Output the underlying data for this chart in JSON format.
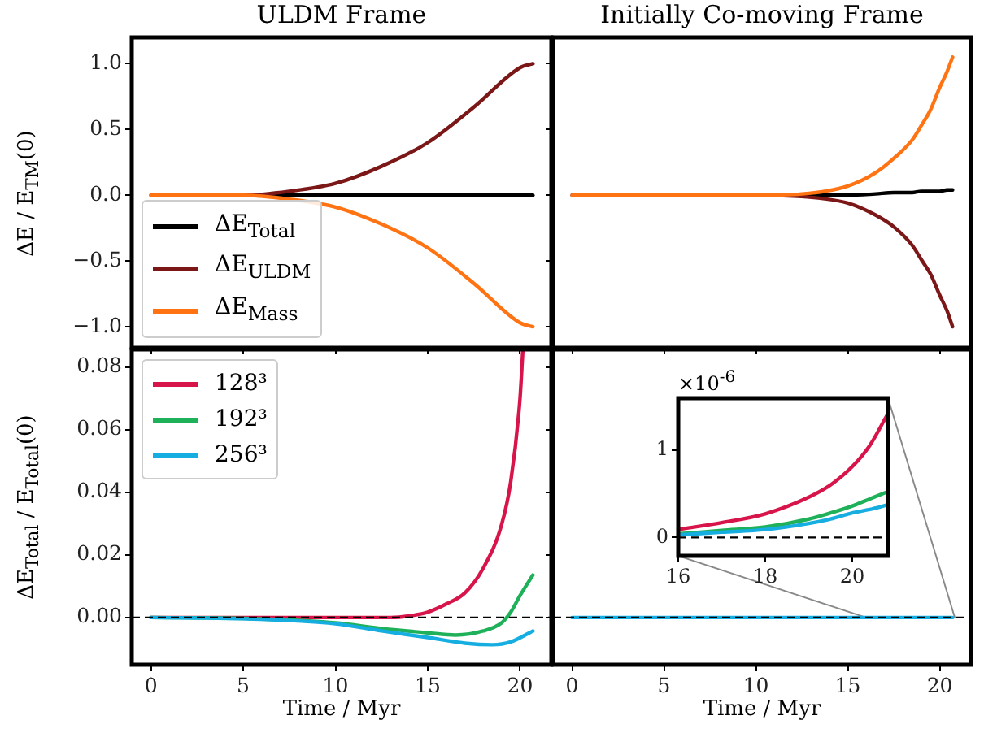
{
  "chart_data": [
    {
      "type": "line",
      "title": "ULDM Frame",
      "ylabel": "ΔE / E$_{TM}$(0)",
      "xlim": [
        -1.04,
        21.7
      ],
      "ylim": [
        -1.16,
        1.2
      ],
      "xticks": [
        0,
        5,
        10,
        15,
        20
      ],
      "yticks": [
        {
          "value": -1,
          "label": "−1.0"
        },
        {
          "value": -0.5,
          "label": "−0.5"
        },
        {
          "value": 0,
          "label": "0.0"
        },
        {
          "value": 0.5,
          "label": "0.5"
        },
        {
          "value": 1,
          "label": "1.0"
        }
      ],
      "tick_labels": "y",
      "grid": false,
      "legend": "bottom left",
      "series": [
        {
          "name": "ΔE$_{Total}$",
          "color": "#000000",
          "x": [
            5,
            7.5,
            10,
            12.5,
            15,
            17.5,
            20,
            20.7
          ],
          "values": [
            0,
            0,
            0,
            0,
            0,
            0,
            0,
            0
          ]
        },
        {
          "name": "ΔE$_{ULDM}$",
          "color": "#7b1717",
          "x": [
            0,
            2.5,
            5,
            7.5,
            10,
            12.5,
            15,
            17.5,
            20,
            20.7
          ],
          "values": [
            0,
            0,
            0,
            0.03,
            0.09,
            0.22,
            0.4,
            0.67,
            0.97,
            1.0
          ]
        },
        {
          "name": "ΔE$_{Mass}$",
          "color": "#ff7312",
          "x": [
            0,
            2.5,
            5,
            7.5,
            10,
            12.5,
            15,
            17.5,
            20,
            20.7
          ],
          "values": [
            0,
            0,
            0,
            -0.03,
            -0.09,
            -0.22,
            -0.4,
            -0.67,
            -0.97,
            -1.0
          ]
        }
      ]
    },
    {
      "type": "line",
      "title": "Initially Co-moving Frame",
      "xlim": [
        -1.04,
        21.7
      ],
      "ylim": [
        -1.16,
        1.2
      ],
      "xticks": [
        0,
        5,
        10,
        15,
        20
      ],
      "yticks": [
        {
          "value": -1,
          "label": null
        },
        {
          "value": -0.5,
          "label": null
        },
        {
          "value": 0,
          "label": null
        },
        {
          "value": 0.5,
          "label": null
        },
        {
          "value": 1,
          "label": null
        }
      ],
      "tick_labels": false,
      "grid": false,
      "series": [
        {
          "color": "#000000",
          "x": [
            10,
            12.5,
            15,
            16.5,
            17.5,
            18.5,
            19,
            19.5,
            20,
            20.4,
            20.7
          ],
          "values": [
            0,
            0,
            0,
            0.01,
            0.02,
            0.02,
            0.03,
            0.03,
            0.03,
            0.04,
            0.04
          ]
        },
        {
          "color": "#7b1717",
          "x": [
            0,
            5,
            10,
            12.5,
            15,
            16.5,
            17.5,
            18.5,
            19,
            19.5,
            20,
            20.4,
            20.7
          ],
          "values": [
            0,
            0,
            0,
            -0.01,
            -0.06,
            -0.15,
            -0.24,
            -0.38,
            -0.49,
            -0.6,
            -0.76,
            -0.88,
            -1.0
          ]
        },
        {
          "color": "#ff7312",
          "x": [
            0,
            5,
            10,
            12.5,
            15,
            16.5,
            17.5,
            18.5,
            19,
            19.5,
            20,
            20.4,
            20.7
          ],
          "values": [
            0,
            0,
            0,
            0.01,
            0.07,
            0.17,
            0.28,
            0.42,
            0.53,
            0.65,
            0.82,
            0.94,
            1.05
          ]
        }
      ]
    },
    {
      "type": "line",
      "xlabel": "Time / Myr",
      "ylabel": "ΔE$_{Total}$ / E$_{Total}$(0)",
      "xlim": [
        -1.04,
        21.7
      ],
      "ylim": [
        -0.0151,
        0.0857
      ],
      "xticks": [
        0,
        5,
        10,
        15,
        20
      ],
      "yticks": [
        {
          "value": 0,
          "label": "0.00"
        },
        {
          "value": 0.02,
          "label": "0.02"
        },
        {
          "value": 0.04,
          "label": "0.04"
        },
        {
          "value": 0.06,
          "label": "0.06"
        },
        {
          "value": 0.08,
          "label": "0.08"
        }
      ],
      "grid": false,
      "legend": "top left",
      "ref_lines": [
        {
          "axis": "y",
          "value": 0,
          "color": "#000000",
          "line_style": "dashed"
        }
      ],
      "series": [
        {
          "name": "128³",
          "color": "#d8154a",
          "x": [
            0,
            5,
            10,
            13,
            14,
            15,
            16,
            17,
            18,
            19,
            19.5,
            20,
            20.15
          ],
          "values": [
            0,
            0,
            0,
            0,
            0.0005,
            0.0017,
            0.0043,
            0.0078,
            0.0157,
            0.0296,
            0.0435,
            0.07,
            0.085
          ]
        },
        {
          "name": "192³",
          "color": "#1fb15a",
          "x": [
            0,
            5,
            10,
            12.5,
            15,
            16.5,
            18,
            19,
            19.5,
            20,
            20.7
          ],
          "values": [
            0,
            -0.0003,
            -0.0017,
            -0.0035,
            -0.0049,
            -0.0056,
            -0.0043,
            -0.0017,
            0.0017,
            0.007,
            0.0136
          ]
        },
        {
          "name": "256³",
          "color": "#16aee0",
          "x": [
            0,
            5,
            10,
            12.5,
            15,
            17,
            18.5,
            19.5,
            20.7
          ],
          "values": [
            0,
            -0.0004,
            -0.002,
            -0.0043,
            -0.0064,
            -0.0082,
            -0.0087,
            -0.0078,
            -0.0043
          ]
        }
      ]
    },
    {
      "type": "line",
      "xlabel": "Time / Myr",
      "xlim": [
        -1.04,
        21.7
      ],
      "ylim": [
        -0.0151,
        0.0857
      ],
      "xticks": [
        0,
        5,
        10,
        15,
        20
      ],
      "yticks": [
        {
          "value": 0,
          "label": null
        },
        {
          "value": 0.02,
          "label": null
        },
        {
          "value": 0.04,
          "label": null
        },
        {
          "value": 0.06,
          "label": null
        },
        {
          "value": 0.08,
          "label": null
        }
      ],
      "tick_labels": "x",
      "grid": false,
      "ref_lines": [
        {
          "axis": "y",
          "value": 0,
          "color": "#000000",
          "line_style": "dashed"
        }
      ],
      "series": [
        {
          "color": "#16aee0",
          "x": [
            0,
            20.7
          ],
          "values": [
            0,
            0
          ]
        }
      ]
    },
    {
      "type": "line",
      "annotations": [
        "×10$^{-6}$"
      ],
      "xlim": [
        16,
        20.82
      ],
      "ylim": [
        -0.21,
        1.59
      ],
      "xticks": [
        16,
        18,
        20
      ],
      "yticks": [
        0,
        1
      ],
      "grid": false,
      "ref_lines": [
        {
          "axis": "y",
          "value": 0,
          "color": "#000000",
          "line_style": "dashed"
        }
      ],
      "series": [
        {
          "color": "#d8154a",
          "x": [
            16,
            17,
            18,
            19,
            19.5,
            20,
            20.4,
            20.8
          ],
          "values": [
            0.09,
            0.17,
            0.27,
            0.46,
            0.6,
            0.81,
            1.05,
            1.4
          ]
        },
        {
          "color": "#1fb15a",
          "x": [
            16,
            17,
            18,
            19,
            19.5,
            20,
            20.4,
            20.8
          ],
          "values": [
            0.04,
            0.08,
            0.12,
            0.21,
            0.28,
            0.36,
            0.44,
            0.52
          ]
        },
        {
          "color": "#16aee0",
          "x": [
            16,
            17,
            18,
            19,
            19.5,
            20,
            20.4,
            20.8
          ],
          "values": [
            0.03,
            0.06,
            0.09,
            0.16,
            0.21,
            0.28,
            0.32,
            0.37
          ]
        }
      ]
    }
  ]
}
